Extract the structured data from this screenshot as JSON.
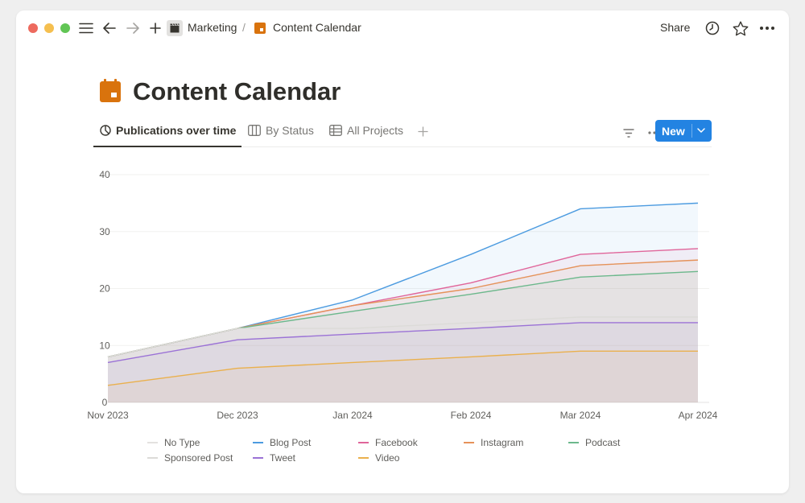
{
  "breadcrumb": {
    "parent": "Marketing",
    "separator": "/",
    "current": "Content Calendar"
  },
  "topbar": {
    "share_label": "Share"
  },
  "page": {
    "title": "Content Calendar"
  },
  "tabs": [
    {
      "label": "Publications over time",
      "icon": "chart-pie-icon",
      "active": true
    },
    {
      "label": "By Status",
      "icon": "board-icon",
      "active": false
    },
    {
      "label": "All Projects",
      "icon": "table-icon",
      "active": false
    }
  ],
  "toolbar": {
    "new_label": "New"
  },
  "colors": {
    "accent": "#2383e2",
    "calendar_icon": "#d9730d"
  },
  "chart_data": {
    "type": "area",
    "x": [
      "2023-11-01",
      "2023-12-01",
      "2024-01-01",
      "2024-02-01",
      "2024-03-01",
      "2024-04-01"
    ],
    "x_tick_labels": [
      "Nov 2023",
      "Dec 2023",
      "Jan 2024",
      "Feb 2024",
      "Mar 2024",
      "Apr 2024"
    ],
    "stacked": true,
    "ylim": [
      0,
      40
    ],
    "yticks": [
      0,
      10,
      20,
      30,
      40
    ],
    "grid": true,
    "legend_position": "bottom",
    "series": [
      {
        "name": "No Type",
        "color": "#e3e2e0",
        "cumulative": [
          8,
          13,
          17,
          20,
          24,
          25
        ]
      },
      {
        "name": "Blog Post",
        "color": "#4c9be0",
        "cumulative": [
          8,
          13,
          18,
          26,
          34,
          35
        ]
      },
      {
        "name": "Facebook",
        "color": "#e0659a",
        "cumulative": [
          8,
          13,
          17,
          21,
          26,
          27
        ]
      },
      {
        "name": "Instagram",
        "color": "#e6925a",
        "cumulative": [
          8,
          13,
          17,
          20,
          24,
          25
        ]
      },
      {
        "name": "Podcast",
        "color": "#6cb88c",
        "cumulative": [
          8,
          13,
          16,
          19,
          22,
          23
        ]
      },
      {
        "name": "Sponsored Post",
        "color": "#dcdbd8",
        "cumulative": [
          8,
          13,
          13,
          14,
          15,
          15
        ]
      },
      {
        "name": "Tweet",
        "color": "#9b72d6",
        "cumulative": [
          7,
          11,
          12,
          13,
          14,
          14
        ]
      },
      {
        "name": "Video",
        "color": "#eab04d",
        "cumulative": [
          3,
          6,
          7,
          8,
          9,
          9
        ]
      }
    ]
  }
}
